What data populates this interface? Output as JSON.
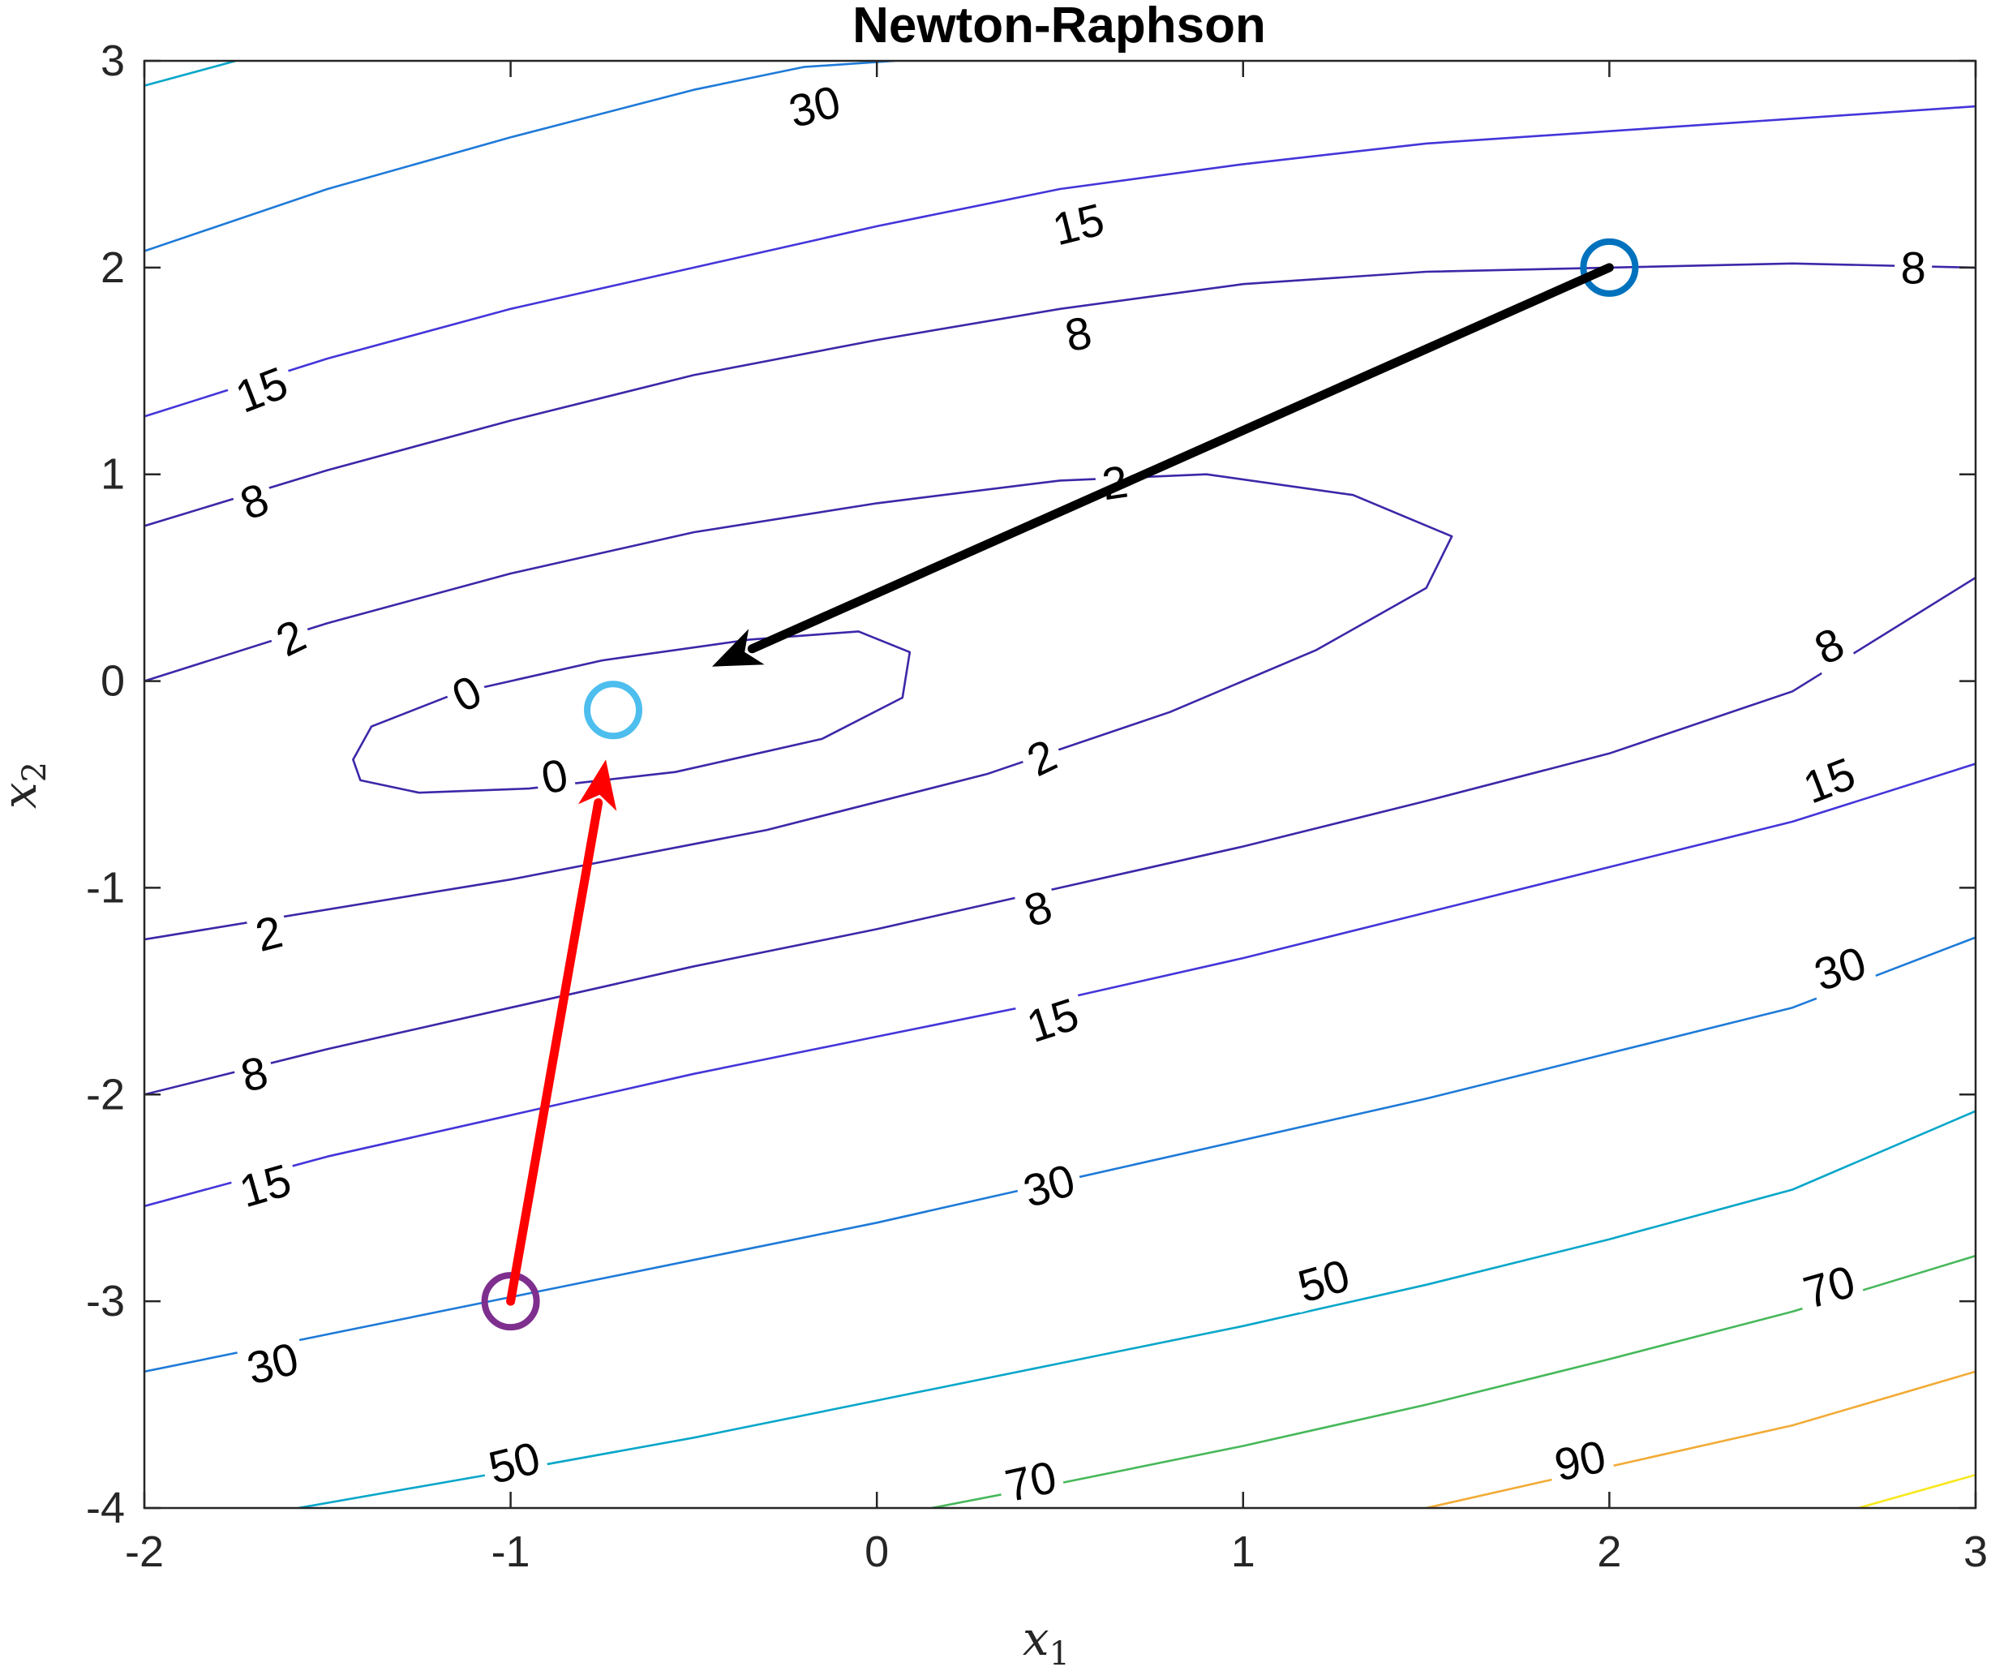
{
  "chart_data": {
    "type": "contour",
    "title": "Newton-Raphson",
    "xlabel": "x",
    "xlabel_sub": "1",
    "ylabel": "x",
    "ylabel_sub": "2",
    "xlim": [
      -2,
      3
    ],
    "ylim": [
      -4,
      3
    ],
    "x_ticks": [
      -2,
      -1,
      0,
      1,
      2,
      3
    ],
    "y_ticks": [
      -4,
      -3,
      -2,
      -1,
      0,
      1,
      2,
      3
    ],
    "x_tick_labels": [
      "-2",
      "-1",
      "0",
      "1",
      "2",
      "3"
    ],
    "y_tick_labels": [
      "-4",
      "-3",
      "-2",
      "-1",
      "0",
      "1",
      "2",
      "3"
    ],
    "grid": false,
    "contour_levels": [
      0,
      2,
      8,
      15,
      30,
      50,
      70,
      90
    ],
    "contours": [
      {
        "level": 0,
        "color": "#3e26a8",
        "closed": true,
        "points": [
          [
            -1.41,
            -0.48
          ],
          [
            -1.25,
            -0.54
          ],
          [
            -0.95,
            -0.52
          ],
          [
            -0.55,
            -0.44
          ],
          [
            -0.15,
            -0.28
          ],
          [
            0.07,
            -0.08
          ],
          [
            0.09,
            0.14
          ],
          [
            -0.05,
            0.24
          ],
          [
            -0.35,
            0.2
          ],
          [
            -0.75,
            0.1
          ],
          [
            -1.15,
            -0.06
          ],
          [
            -1.38,
            -0.22
          ],
          [
            -1.43,
            -0.38
          ]
        ]
      },
      {
        "level": 2,
        "color": "#3e26a8",
        "closed": false,
        "points": [
          [
            -2.0,
            0.0
          ],
          [
            -1.5,
            0.28
          ],
          [
            -1.0,
            0.52
          ],
          [
            -0.5,
            0.72
          ],
          [
            0.0,
            0.86
          ],
          [
            0.5,
            0.97
          ],
          [
            0.9,
            1.0
          ],
          [
            1.3,
            0.9
          ],
          [
            1.57,
            0.7
          ],
          [
            1.5,
            0.45
          ],
          [
            1.2,
            0.15
          ],
          [
            0.8,
            -0.15
          ],
          [
            0.3,
            -0.45
          ],
          [
            -0.3,
            -0.72
          ],
          [
            -1.0,
            -0.96
          ],
          [
            -2.0,
            -1.25
          ]
        ]
      },
      {
        "level": 8,
        "color": "#3e26a8",
        "closed": false,
        "points": [
          [
            -2.0,
            0.75
          ],
          [
            -1.5,
            1.02
          ],
          [
            -1.0,
            1.26
          ],
          [
            -0.5,
            1.48
          ],
          [
            0.0,
            1.65
          ],
          [
            0.5,
            1.8
          ],
          [
            1.0,
            1.92
          ],
          [
            1.5,
            1.98
          ],
          [
            2.0,
            2.0
          ],
          [
            2.5,
            2.02
          ],
          [
            3.0,
            2.0
          ]
        ]
      },
      {
        "level": 8,
        "color": "#3e26a8",
        "closed": false,
        "points": [
          [
            -2.0,
            -2.0
          ],
          [
            -1.5,
            -1.78
          ],
          [
            -1.0,
            -1.58
          ],
          [
            -0.5,
            -1.38
          ],
          [
            0.0,
            -1.2
          ],
          [
            0.5,
            -1.0
          ],
          [
            1.0,
            -0.8
          ],
          [
            1.5,
            -0.58
          ],
          [
            2.0,
            -0.35
          ],
          [
            2.5,
            -0.05
          ],
          [
            3.0,
            0.5
          ]
        ]
      },
      {
        "level": 15,
        "color": "#4435d9",
        "closed": false,
        "points": [
          [
            -2.0,
            1.28
          ],
          [
            -1.5,
            1.56
          ],
          [
            -1.0,
            1.8
          ],
          [
            -0.5,
            2.0
          ],
          [
            0.0,
            2.2
          ],
          [
            0.5,
            2.38
          ],
          [
            1.0,
            2.5
          ],
          [
            1.5,
            2.6
          ],
          [
            2.0,
            2.66
          ],
          [
            2.5,
            2.72
          ],
          [
            3.0,
            2.78
          ]
        ]
      },
      {
        "level": 15,
        "color": "#4435d9",
        "closed": false,
        "points": [
          [
            -2.0,
            -2.54
          ],
          [
            -1.5,
            -2.3
          ],
          [
            -1.0,
            -2.1
          ],
          [
            -0.5,
            -1.9
          ],
          [
            0.0,
            -1.72
          ],
          [
            0.5,
            -1.54
          ],
          [
            1.0,
            -1.34
          ],
          [
            1.5,
            -1.12
          ],
          [
            2.0,
            -0.9
          ],
          [
            2.5,
            -0.68
          ],
          [
            3.0,
            -0.4
          ]
        ]
      },
      {
        "level": 30,
        "color": "#1e7ad8",
        "closed": false,
        "points": [
          [
            -2.0,
            2.08
          ],
          [
            -1.5,
            2.38
          ],
          [
            -1.0,
            2.63
          ],
          [
            -0.5,
            2.86
          ],
          [
            -0.2,
            2.97
          ],
          [
            0.05,
            3.0
          ]
        ]
      },
      {
        "level": 30,
        "color": "#1e7ad8",
        "closed": false,
        "points": [
          [
            -2.0,
            -3.34
          ],
          [
            -1.5,
            -3.16
          ],
          [
            -1.0,
            -2.98
          ],
          [
            -0.5,
            -2.8
          ],
          [
            0.0,
            -2.62
          ],
          [
            0.5,
            -2.42
          ],
          [
            1.0,
            -2.22
          ],
          [
            1.5,
            -2.02
          ],
          [
            2.0,
            -1.8
          ],
          [
            2.5,
            -1.58
          ],
          [
            3.0,
            -1.24
          ]
        ]
      },
      {
        "level": 50,
        "color": "#07a6c9",
        "closed": false,
        "points": [
          [
            -2.0,
            2.88
          ],
          [
            -1.75,
            3.0
          ]
        ]
      },
      {
        "level": 50,
        "color": "#07a6c9",
        "closed": false,
        "points": [
          [
            -1.58,
            -4.0
          ],
          [
            -1.0,
            -3.82
          ],
          [
            -0.5,
            -3.66
          ],
          [
            0.0,
            -3.48
          ],
          [
            0.5,
            -3.3
          ],
          [
            1.0,
            -3.12
          ],
          [
            1.5,
            -2.92
          ],
          [
            2.0,
            -2.7
          ],
          [
            2.5,
            -2.46
          ],
          [
            3.0,
            -2.08
          ]
        ]
      },
      {
        "level": 70,
        "color": "#46b85a",
        "closed": false,
        "points": [
          [
            0.15,
            -4.0
          ],
          [
            0.5,
            -3.88
          ],
          [
            1.0,
            -3.7
          ],
          [
            1.5,
            -3.5
          ],
          [
            2.0,
            -3.28
          ],
          [
            2.5,
            -3.05
          ],
          [
            3.0,
            -2.78
          ]
        ]
      },
      {
        "level": 90,
        "color": "#f2ab36",
        "closed": false,
        "points": [
          [
            1.5,
            -4.0
          ],
          [
            2.0,
            -3.8
          ],
          [
            2.5,
            -3.6
          ],
          [
            3.0,
            -3.34
          ]
        ]
      },
      {
        "level": null,
        "color": "#f8e71c",
        "closed": false,
        "points": [
          [
            2.68,
            -4.0
          ],
          [
            3.0,
            -3.84
          ]
        ]
      }
    ],
    "contour_labels": [
      {
        "text": "30",
        "x": -0.17,
        "y": 2.78,
        "angle": -14
      },
      {
        "text": "15",
        "x": 0.55,
        "y": 2.21,
        "angle": -14
      },
      {
        "text": "8",
        "x": 0.55,
        "y": 1.68,
        "angle": -12
      },
      {
        "text": "8",
        "x": 2.83,
        "y": 2.0,
        "angle": 0
      },
      {
        "text": "15",
        "x": -1.68,
        "y": 1.41,
        "angle": -21
      },
      {
        "text": "8",
        "x": -1.7,
        "y": 0.87,
        "angle": -21
      },
      {
        "text": "2",
        "x": 0.65,
        "y": 0.96,
        "angle": -8
      },
      {
        "text": "2",
        "x": -1.6,
        "y": 0.21,
        "angle": -26
      },
      {
        "text": "0",
        "x": -1.12,
        "y": -0.06,
        "angle": -26
      },
      {
        "text": "0",
        "x": -0.88,
        "y": -0.46,
        "angle": -12
      },
      {
        "text": "2",
        "x": 0.45,
        "y": -0.37,
        "angle": -26
      },
      {
        "text": "8",
        "x": 2.6,
        "y": 0.17,
        "angle": -26
      },
      {
        "text": "15",
        "x": 2.6,
        "y": -0.48,
        "angle": -21
      },
      {
        "text": "8",
        "x": 0.44,
        "y": -1.1,
        "angle": -18
      },
      {
        "text": "2",
        "x": -1.66,
        "y": -1.22,
        "angle": -14
      },
      {
        "text": "15",
        "x": 0.48,
        "y": -1.64,
        "angle": -18
      },
      {
        "text": "30",
        "x": 2.63,
        "y": -1.39,
        "angle": -18
      },
      {
        "text": "8",
        "x": -1.7,
        "y": -1.9,
        "angle": -14
      },
      {
        "text": "15",
        "x": -1.67,
        "y": -2.44,
        "angle": -16
      },
      {
        "text": "30",
        "x": 0.47,
        "y": -2.44,
        "angle": -16
      },
      {
        "text": "50",
        "x": 1.22,
        "y": -2.9,
        "angle": -16
      },
      {
        "text": "70",
        "x": 2.6,
        "y": -2.93,
        "angle": -16
      },
      {
        "text": "30",
        "x": -1.65,
        "y": -3.3,
        "angle": -14
      },
      {
        "text": "50",
        "x": -0.99,
        "y": -3.78,
        "angle": -14
      },
      {
        "text": "70",
        "x": 0.42,
        "y": -3.87,
        "angle": -12
      },
      {
        "text": "90",
        "x": 1.92,
        "y": -3.77,
        "angle": -12
      }
    ],
    "points": [
      {
        "x": 2.0,
        "y": 2.0,
        "color": "#0072bd"
      },
      {
        "x": -1.0,
        "y": -3.0,
        "color": "#7e2f8e"
      },
      {
        "x": -0.72,
        "y": -0.14,
        "color": "#4dbeee"
      }
    ],
    "arrows": [
      {
        "from": [
          2.0,
          2.0
        ],
        "to": [
          -0.45,
          0.07
        ],
        "color": "#000000"
      },
      {
        "from": [
          -1.0,
          -3.0
        ],
        "to": [
          -0.74,
          -0.38
        ],
        "color": "#ff0000"
      }
    ]
  }
}
